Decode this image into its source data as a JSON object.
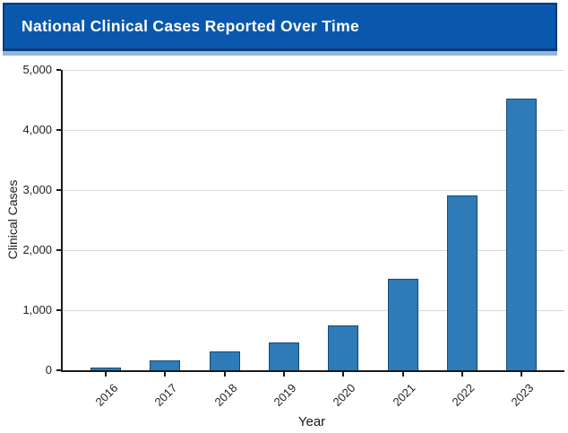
{
  "header": {
    "title": "National Clinical Cases Reported Over Time"
  },
  "colors": {
    "header_bg": "#0a58ad",
    "header_border": "#0b3a7a",
    "header_shadow": "#8fb8de",
    "bar_fill": "#2e7bb8",
    "bar_edge": "#174a74",
    "gridline": "#d9d9d9",
    "axis": "#1a1a1a"
  },
  "chart_data": {
    "type": "bar",
    "title": "National Clinical Cases Reported Over Time",
    "categories": [
      "2016",
      "2017",
      "2018",
      "2019",
      "2020",
      "2021",
      "2022",
      "2023"
    ],
    "values": [
      50,
      160,
      320,
      465,
      750,
      1520,
      2910,
      4520
    ],
    "xlabel": "Year",
    "ylabel": "Clinical Cases",
    "ylim": [
      0,
      5000
    ],
    "ytick_step": 1000,
    "ytick_labels": [
      "0",
      "1,000",
      "2,000",
      "3,000",
      "4,000",
      "5,000"
    ],
    "grid": "horizontal-only",
    "legend": "none",
    "bar_orientation": "vertical",
    "xtick_rotation_deg": 45
  }
}
